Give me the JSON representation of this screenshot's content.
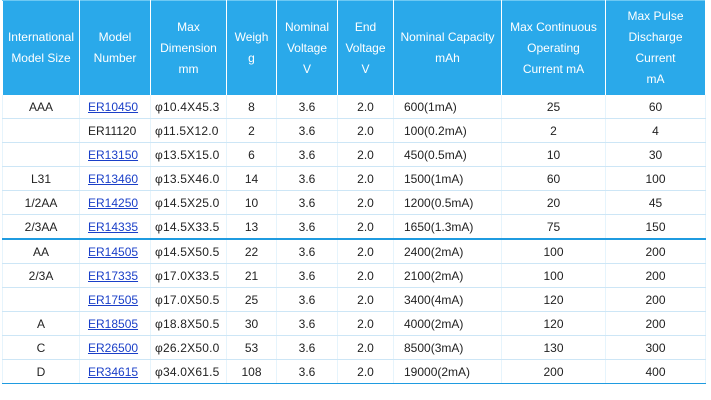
{
  "headers": [
    [
      "International",
      "Model Size"
    ],
    [
      "Model",
      "Number"
    ],
    [
      "Max",
      "Dimension",
      "mm"
    ],
    [
      "Weigh",
      "g"
    ],
    [
      "Nominal",
      "Voltage",
      "V"
    ],
    [
      "End",
      "Voltage",
      "V"
    ],
    [
      "Nominal Capacity",
      "mAh"
    ],
    [
      "Max Continuous",
      "Operating",
      "Current mA"
    ],
    [
      "Max Pulse",
      "Discharge",
      "Current",
      "mA"
    ]
  ],
  "rows": [
    {
      "size": "AAA",
      "model": "ER10450",
      "linked": true,
      "dim": "φ10.4X45.3",
      "weight": "8",
      "nom_v": "3.6",
      "end_v": "2.0",
      "capacity": "600(1mA)",
      "cont": "25",
      "pulse": "60"
    },
    {
      "size": "",
      "model": "ER11120",
      "linked": false,
      "dim": "φ11.5X12.0",
      "weight": "2",
      "nom_v": "3.6",
      "end_v": "2.0",
      "capacity": "100(0.2mA)",
      "cont": "2",
      "pulse": "4"
    },
    {
      "size": "",
      "model": "ER13150",
      "linked": true,
      "dim": "φ13.5X15.0",
      "weight": "6",
      "nom_v": "3.6",
      "end_v": "2.0",
      "capacity": "450(0.5mA)",
      "cont": "10",
      "pulse": "30"
    },
    {
      "size": "L31",
      "model": "ER13460",
      "linked": true,
      "dim": "φ13.5X46.0",
      "weight": "14",
      "nom_v": "3.6",
      "end_v": "2.0",
      "capacity": "1500(1mA)",
      "cont": "60",
      "pulse": "100"
    },
    {
      "size": "1/2AA",
      "model": "ER14250",
      "linked": true,
      "dim": "φ14.5X25.0",
      "weight": "10",
      "nom_v": "3.6",
      "end_v": "2.0",
      "capacity": "1200(0.5mA)",
      "cont": "20",
      "pulse": "45"
    },
    {
      "size": "2/3AA",
      "model": "ER14335",
      "linked": true,
      "dim": "φ14.5X33.5",
      "weight": "13",
      "nom_v": "3.6",
      "end_v": "2.0",
      "capacity": "1650(1.3mA)",
      "cont": "75",
      "pulse": "150"
    },
    {
      "size": "AA",
      "model": "ER14505",
      "linked": true,
      "dim": "φ14.5X50.5",
      "weight": "22",
      "nom_v": "3.6",
      "end_v": "2.0",
      "capacity": "2400(2mA)",
      "cont": "100",
      "pulse": "200"
    },
    {
      "size": "2/3A",
      "model": "ER17335",
      "linked": true,
      "dim": "φ17.0X33.5",
      "weight": "21",
      "nom_v": "3.6",
      "end_v": "2.0",
      "capacity": "2100(2mA)",
      "cont": "100",
      "pulse": "200"
    },
    {
      "size": "",
      "model": "ER17505",
      "linked": true,
      "dim": "φ17.0X50.5",
      "weight": "25",
      "nom_v": "3.6",
      "end_v": "2.0",
      "capacity": "3400(4mA)",
      "cont": "120",
      "pulse": "200"
    },
    {
      "size": "A",
      "model": "ER18505",
      "linked": true,
      "dim": "φ18.8X50.5",
      "weight": "30",
      "nom_v": "3.6",
      "end_v": "2.0",
      "capacity": "4000(2mA)",
      "cont": "120",
      "pulse": "200"
    },
    {
      "size": "C",
      "model": "ER26500",
      "linked": true,
      "dim": "φ26.2X50.0",
      "weight": "53",
      "nom_v": "3.6",
      "end_v": "2.0",
      "capacity": "8500(3mA)",
      "cont": "130",
      "pulse": "300"
    },
    {
      "size": "D",
      "model": "ER34615",
      "linked": true,
      "dim": "φ34.0X61.5",
      "weight": "108",
      "nom_v": "3.6",
      "end_v": "2.0",
      "capacity": "19000(2mA)",
      "cont": "200",
      "pulse": "400"
    }
  ]
}
